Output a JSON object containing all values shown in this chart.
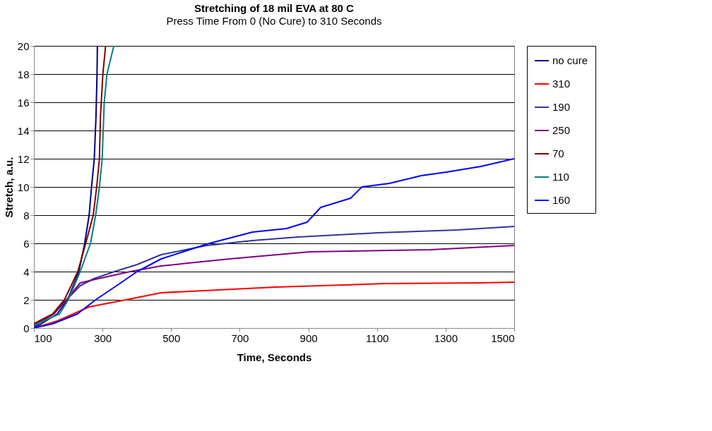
{
  "chart_data": {
    "type": "line",
    "title": "Stretching of 18 mil EVA at 80 C",
    "subtitle": "Press Time From 0 (No Cure) to 310 Seconds",
    "xlabel": "Time, Seconds",
    "ylabel": "Stretch, a.u.",
    "xlim": [
      100,
      1500
    ],
    "xticks": [
      100,
      300,
      500,
      700,
      900,
      1100,
      1300,
      1500
    ],
    "ylim": [
      0,
      20
    ],
    "yticks": [
      0,
      2,
      4,
      6,
      8,
      10,
      12,
      14,
      16,
      18,
      20
    ],
    "grid": "y",
    "legend": "right",
    "line_style": "solid",
    "marker": "none",
    "series": [
      {
        "name": "no cure",
        "color": "#000080",
        "x": [
          100,
          115,
          168,
          198,
          231,
          248,
          261,
          268,
          276,
          281,
          284,
          285
        ],
        "values": [
          0.1,
          0.2,
          1,
          2,
          4,
          6,
          8,
          10,
          12,
          15,
          18,
          20
        ]
      },
      {
        "name": "310",
        "color": "#ff0000",
        "x": [
          100,
          168,
          215,
          261,
          368,
          471,
          804,
          1123,
          1402,
          1500
        ],
        "values": [
          0,
          0.5,
          1,
          1.5,
          2,
          2.5,
          2.9,
          3.15,
          3.2,
          3.25
        ]
      },
      {
        "name": "190",
        "color": "#333399",
        "x": [
          100,
          158,
          195,
          235,
          275,
          335,
          401,
          471,
          604,
          737,
          870,
          1103,
          1335,
          1500
        ],
        "values": [
          0.1,
          1,
          2,
          3,
          3.5,
          4,
          4.5,
          5.2,
          5.85,
          6.2,
          6.45,
          6.75,
          6.95,
          7.2
        ]
      },
      {
        "name": "250",
        "color": "#800080",
        "x": [
          100,
          158,
          195,
          235,
          288,
          381,
          471,
          671,
          903,
          1255,
          1500
        ],
        "values": [
          0.2,
          1,
          2,
          3.2,
          3.5,
          4,
          4.4,
          4.9,
          5.4,
          5.55,
          5.85
        ]
      },
      {
        "name": "70",
        "color": "#800000",
        "x": [
          100,
          155,
          189,
          228,
          251,
          273,
          283,
          291,
          294,
          301,
          309
        ],
        "values": [
          0.3,
          1,
          2,
          4,
          6,
          8,
          10,
          12,
          15,
          18,
          20
        ]
      },
      {
        "name": "110",
        "color": "#008080",
        "x": [
          100,
          175,
          200,
          235,
          265,
          280,
          291,
          299,
          305,
          313,
          333
        ],
        "values": [
          0.2,
          1,
          2,
          4,
          6,
          8,
          10,
          12,
          16,
          18,
          20
        ]
      },
      {
        "name": "160",
        "color": "#0000ff",
        "x": [
          100,
          155,
          227,
          280,
          341,
          401,
          471,
          604,
          737,
          836,
          896,
          936,
          1023,
          1056,
          1136,
          1229,
          1302,
          1402,
          1500
        ],
        "values": [
          0,
          0.3,
          1,
          2,
          3,
          4,
          4.9,
          5.95,
          6.8,
          7.05,
          7.5,
          8.55,
          9.2,
          10,
          10.25,
          10.8,
          11.05,
          11.45,
          12.0
        ]
      }
    ]
  }
}
